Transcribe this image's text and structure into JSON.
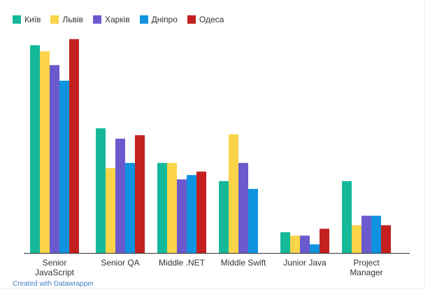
{
  "chart_data": {
    "type": "bar",
    "categories": [
      [
        "Senior",
        "JavaScript"
      ],
      [
        "Senior QA"
      ],
      [
        "Middle .NET"
      ],
      [
        "Middle Swift"
      ],
      [
        "Junior Java"
      ],
      [
        "Project",
        "Manager"
      ]
    ],
    "series": [
      {
        "name": "Київ",
        "color": "#15b99a",
        "values": [
          6000,
          3600,
          2600,
          2075,
          600,
          2075
        ]
      },
      {
        "name": "Львів",
        "color": "#fad448",
        "values": [
          5825,
          2450,
          2600,
          3425,
          500,
          800
        ]
      },
      {
        "name": "Харків",
        "color": "#6a5acd",
        "values": [
          5425,
          3300,
          2125,
          2600,
          500,
          1075
        ]
      },
      {
        "name": "Дніпро",
        "color": "#0f93e0",
        "values": [
          4975,
          2600,
          2250,
          1850,
          250,
          1075
        ]
      },
      {
        "name": "Одеса",
        "color": "#c3201f",
        "values": [
          6175,
          3400,
          2350,
          null,
          700,
          800
        ]
      }
    ],
    "ylim": [
      0,
      6500
    ],
    "grid": false,
    "legend": "top-left"
  },
  "footer": {
    "credit": "Created with Datawrapper"
  }
}
